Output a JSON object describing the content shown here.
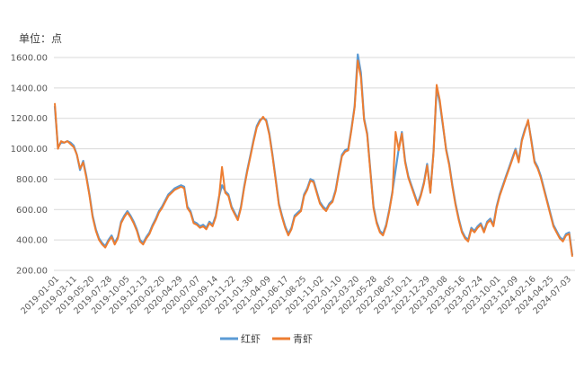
{
  "unit_label": "单位：点",
  "chart_data": {
    "type": "line",
    "title": "",
    "xlabel": "",
    "ylabel": "",
    "ylim": [
      200,
      1600
    ],
    "yticks": [
      "200.00",
      "400.00",
      "600.00",
      "800.00",
      "1000.00",
      "1200.00",
      "1400.00",
      "1600.00"
    ],
    "xticks": [
      "2019-01-01",
      "2019-03-11",
      "2019-05-20",
      "2019-07-28",
      "2019-10-05",
      "2019-12-13",
      "2020-02-20",
      "2020-04-29",
      "2020-07-07",
      "2020-09-14",
      "2020-11-22",
      "2021-01-30",
      "2021-04-09",
      "2021-06-17",
      "2021-08-25",
      "2021-11-02",
      "2022-01-10",
      "2022-03-20",
      "2022-05-28",
      "2022-08-05",
      "2022-10-21",
      "2022-12-29",
      "2023-03-08",
      "2023-05-16",
      "2023-07-24",
      "2023-10-01",
      "2023-12-09",
      "2024-02-16",
      "2024-04-25",
      "2024-07-03"
    ],
    "legend_position": "bottom",
    "grid": true,
    "series": [
      {
        "name": "红虾",
        "color": "#5b9bd5",
        "values": [
          1280,
          1010,
          1040,
          1040,
          1050,
          1040,
          1020,
          960,
          860,
          920,
          820,
          700,
          560,
          470,
          410,
          380,
          360,
          400,
          430,
          380,
          420,
          520,
          560,
          590,
          560,
          520,
          470,
          400,
          380,
          420,
          450,
          500,
          540,
          590,
          620,
          660,
          700,
          720,
          740,
          750,
          760,
          750,
          620,
          590,
          520,
          510,
          490,
          500,
          480,
          520,
          500,
          560,
          680,
          760,
          720,
          700,
          620,
          580,
          540,
          620,
          750,
          860,
          960,
          1060,
          1150,
          1190,
          1200,
          1190,
          1100,
          960,
          800,
          640,
          560,
          490,
          440,
          480,
          560,
          580,
          600,
          700,
          740,
          800,
          790,
          720,
          650,
          620,
          600,
          640,
          660,
          730,
          850,
          960,
          990,
          1000,
          1130,
          1280,
          1620,
          1500,
          1200,
          1100,
          860,
          620,
          520,
          460,
          440,
          500,
          600,
          720,
          860,
          1000,
          1110,
          920,
          820,
          760,
          700,
          640,
          700,
          780,
          900,
          720,
          980,
          1400,
          1300,
          1150,
          1000,
          900,
          760,
          640,
          540,
          460,
          420,
          400,
          480,
          460,
          490,
          510,
          460,
          520,
          540,
          500,
          620,
          700,
          760,
          820,
          880,
          940,
          1000,
          920,
          1060,
          1130,
          1180,
          1060,
          920,
          880,
          820,
          740,
          660,
          580,
          500,
          460,
          420,
          400,
          440,
          450,
          300
        ]
      },
      {
        "name": "青虾",
        "color": "#ed7d31",
        "values": [
          1300,
          1000,
          1050,
          1040,
          1050,
          1030,
          1010,
          960,
          870,
          910,
          810,
          690,
          550,
          460,
          400,
          370,
          350,
          390,
          420,
          370,
          410,
          510,
          550,
          580,
          550,
          510,
          460,
          390,
          370,
          410,
          440,
          490,
          530,
          580,
          610,
          650,
          690,
          710,
          730,
          740,
          750,
          740,
          610,
          580,
          510,
          500,
          480,
          490,
          470,
          510,
          490,
          550,
          670,
          880,
          710,
          690,
          610,
          570,
          530,
          610,
          740,
          850,
          950,
          1050,
          1140,
          1180,
          1210,
          1180,
          1090,
          950,
          790,
          630,
          550,
          480,
          430,
          470,
          550,
          570,
          590,
          690,
          730,
          790,
          780,
          710,
          640,
          610,
          590,
          630,
          650,
          720,
          840,
          950,
          980,
          990,
          1120,
          1270,
          1580,
          1470,
          1190,
          1090,
          850,
          610,
          510,
          450,
          430,
          490,
          590,
          710,
          1110,
          990,
          1100,
          910,
          810,
          750,
          690,
          630,
          690,
          770,
          890,
          710,
          970,
          1420,
          1320,
          1160,
          990,
          890,
          750,
          630,
          530,
          450,
          410,
          390,
          470,
          450,
          480,
          500,
          450,
          510,
          530,
          490,
          610,
          690,
          750,
          810,
          870,
          930,
          990,
          910,
          1050,
          1120,
          1190,
          1050,
          910,
          870,
          810,
          730,
          650,
          570,
          490,
          450,
          410,
          390,
          430,
          440,
          290
        ]
      }
    ]
  }
}
